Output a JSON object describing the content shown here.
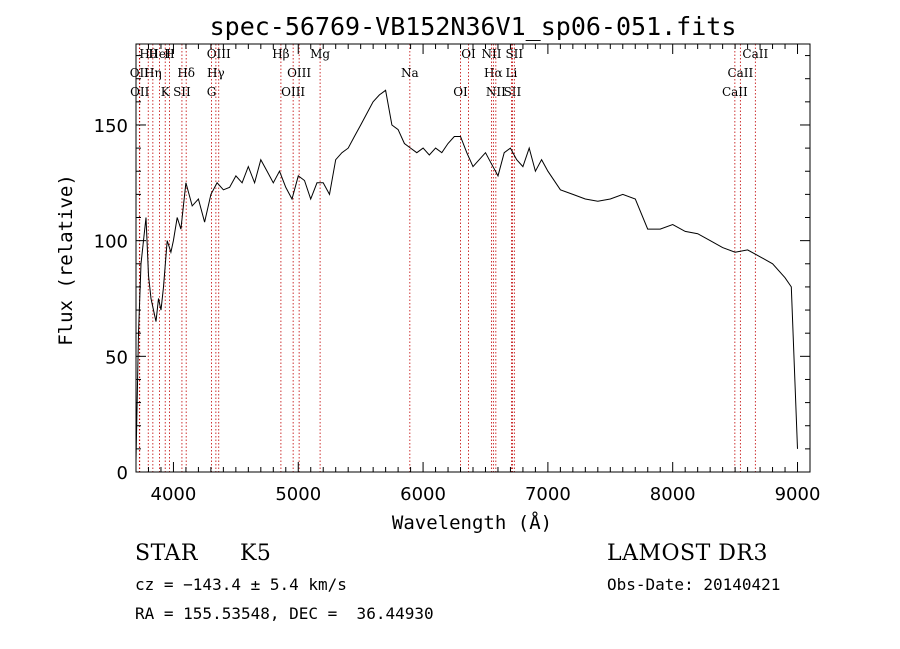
{
  "chart_data": {
    "type": "line",
    "title": "spec-56769-VB152N36V1_sp06-051.fits",
    "xlabel": "Wavelength (Å)",
    "ylabel": "Flux (relative)",
    "xlim": [
      3700,
      9100
    ],
    "ylim": [
      0,
      185
    ],
    "xticks": [
      4000,
      5000,
      6000,
      7000,
      8000,
      9000
    ],
    "yticks": [
      0,
      50,
      100,
      150
    ],
    "series": [
      {
        "name": "spectrum",
        "x": [
          3700,
          3720,
          3740,
          3760,
          3780,
          3800,
          3820,
          3840,
          3860,
          3880,
          3900,
          3920,
          3950,
          3980,
          4000,
          4030,
          4060,
          4100,
          4150,
          4200,
          4250,
          4300,
          4350,
          4400,
          4450,
          4500,
          4550,
          4600,
          4650,
          4700,
          4750,
          4800,
          4850,
          4900,
          4950,
          5000,
          5050,
          5100,
          5150,
          5200,
          5250,
          5300,
          5350,
          5400,
          5450,
          5500,
          5550,
          5600,
          5650,
          5700,
          5750,
          5800,
          5850,
          5900,
          5950,
          6000,
          6050,
          6100,
          6150,
          6200,
          6250,
          6300,
          6350,
          6400,
          6450,
          6500,
          6550,
          6600,
          6650,
          6700,
          6750,
          6800,
          6850,
          6900,
          6950,
          7000,
          7100,
          7200,
          7300,
          7400,
          7500,
          7600,
          7700,
          7800,
          7900,
          8000,
          8100,
          8200,
          8300,
          8400,
          8500,
          8600,
          8700,
          8800,
          8900,
          8950,
          9000
        ],
        "y": [
          5,
          60,
          90,
          100,
          110,
          85,
          75,
          70,
          65,
          75,
          70,
          80,
          100,
          95,
          100,
          110,
          105,
          125,
          115,
          118,
          108,
          120,
          125,
          122,
          123,
          128,
          125,
          132,
          125,
          135,
          130,
          125,
          130,
          123,
          118,
          128,
          126,
          118,
          125,
          125,
          120,
          135,
          138,
          140,
          145,
          150,
          155,
          160,
          163,
          165,
          150,
          148,
          142,
          140,
          138,
          140,
          137,
          140,
          138,
          142,
          145,
          145,
          138,
          132,
          135,
          138,
          133,
          128,
          138,
          140,
          135,
          132,
          140,
          130,
          135,
          130,
          122,
          120,
          118,
          117,
          118,
          120,
          118,
          105,
          105,
          107,
          104,
          103,
          100,
          97,
          95,
          96,
          93,
          90,
          84,
          80,
          10
        ]
      }
    ],
    "spectral_lines": [
      {
        "label": "Hθ",
        "x": 3798
      },
      {
        "label": "OII",
        "x": 3727
      },
      {
        "label": "OII",
        "x": 3730
      },
      {
        "label": "HeI",
        "x": 3889
      },
      {
        "label": "Hη",
        "x": 3835
      },
      {
        "label": "K",
        "x": 3934
      },
      {
        "label": "H",
        "x": 3968
      },
      {
        "label": "Hδ",
        "x": 4102
      },
      {
        "label": "SII",
        "x": 4068
      },
      {
        "label": "OIII",
        "x": 4363
      },
      {
        "label": "Hγ",
        "x": 4340
      },
      {
        "label": "G",
        "x": 4305
      },
      {
        "label": "Hβ",
        "x": 4861
      },
      {
        "label": "OIII",
        "x": 5007
      },
      {
        "label": "OIII",
        "x": 4959
      },
      {
        "label": "Mg",
        "x": 5175
      },
      {
        "label": "Na",
        "x": 5894
      },
      {
        "label": "OI",
        "x": 6300
      },
      {
        "label": "OI",
        "x": 6364
      },
      {
        "label": "Hα",
        "x": 6563
      },
      {
        "label": "SII",
        "x": 6716
      },
      {
        "label": "NII",
        "x": 6548
      },
      {
        "label": "Li",
        "x": 6708
      },
      {
        "label": "NII",
        "x": 6583
      },
      {
        "label": "SII",
        "x": 6731
      },
      {
        "label": "CaII",
        "x": 8542
      },
      {
        "label": "CaII",
        "x": 8498
      },
      {
        "label": "CaII",
        "x": 8662
      }
    ]
  },
  "info": {
    "class": "STAR",
    "subclass": "K5",
    "survey": "LAMOST DR3",
    "cz": "cz = −143.4 ± 5.4 km/s",
    "obsdate": "Obs-Date: 20140421",
    "radec": "RA = 155.53548, DEC =  36.44930"
  }
}
